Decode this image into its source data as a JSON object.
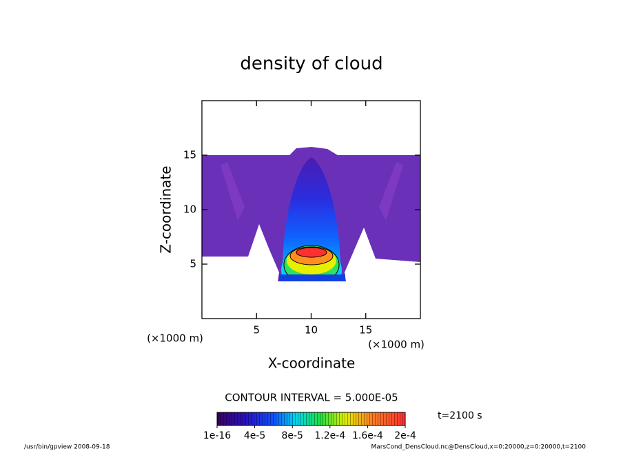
{
  "chart_data": {
    "type": "contour",
    "title": "density of cloud",
    "x_label": "X-coordinate",
    "y_label": "Z-coordinate",
    "x_unit": "(×1000 m)",
    "y_unit": "(×1000 m)",
    "xlim": [
      0,
      20
    ],
    "ylim": [
      0,
      20
    ],
    "xticks": [
      5,
      10,
      15
    ],
    "yticks": [
      5,
      10,
      15
    ],
    "contour_interval": "CONTOUR INTERVAL = 5.000E-05",
    "time_label": "t=2100 s",
    "colorbar": {
      "lim": [
        1e-16,
        0.0002
      ],
      "ticks": [
        {
          "value": 1e-16,
          "label": "1e-16"
        },
        {
          "value": 4e-05,
          "label": "4e-5"
        },
        {
          "value": 8e-05,
          "label": "8e-5"
        },
        {
          "value": 0.00012,
          "label": "1.2e-4"
        },
        {
          "value": 0.00016,
          "label": "1.6e-4"
        },
        {
          "value": 0.0002,
          "label": "2e-4"
        }
      ]
    }
  },
  "footer": {
    "left": "/usr/bin/gpview   2008-09-18",
    "right": "MarsCond_DensCloud.nc@DensCloud,x=0:20000,z=0:20000,t=2100"
  }
}
